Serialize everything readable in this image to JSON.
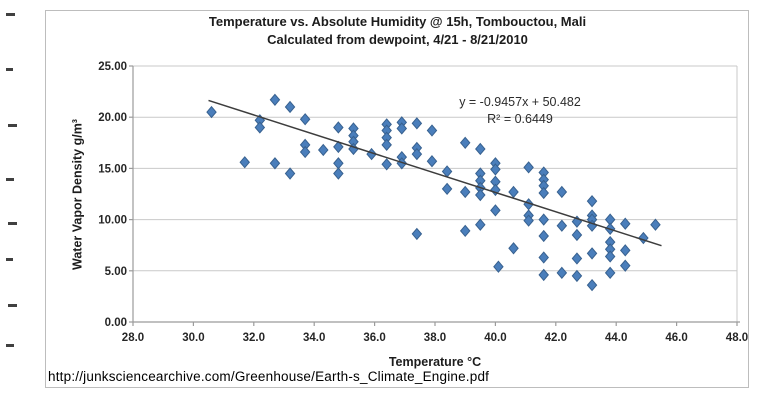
{
  "colors": {
    "marker_fill": "#4a7ebb",
    "marker_edge": "#38618f",
    "gridline": "#c9c9c9",
    "axis": "#9b9b9b",
    "trendline": "#3d3d3d",
    "frame_border": "#bdbdbd",
    "tick_text": "#262626"
  },
  "footer": {
    "url": "http://junksciencearchive.com/Greenhouse/Earth-s_Climate_Engine.pdf"
  },
  "chart_data": {
    "type": "scatter",
    "title_line1": "Temperature vs. Absolute Humidity @ 15h, Tombouctou, Mali",
    "title_line2": "Calculated from dewpoint, 4/21 - 8/21/2010",
    "xlabel": "Temperature °C",
    "ylabel": "Water Vapor Density g/m³",
    "xlim": [
      28,
      48
    ],
    "ylim": [
      0,
      25
    ],
    "xticks": [
      "28.0",
      "30.0",
      "32.0",
      "34.0",
      "36.0",
      "38.0",
      "40.0",
      "42.0",
      "44.0",
      "46.0",
      "48.0"
    ],
    "yticks": [
      "0.00",
      "5.00",
      "10.00",
      "15.00",
      "20.00",
      "25.00"
    ],
    "grid": "horizontal-only",
    "legend": "none",
    "marker_shape": "diamond",
    "trendline": {
      "equation_label": "y = -0.9457x + 50.482",
      "r2_label": "R² = 0.6449",
      "slope": -0.9457,
      "intercept": 50.482,
      "r_squared": 0.6449,
      "x_start": 30.5,
      "x_end": 45.5
    },
    "points": [
      [
        30.6,
        20.5
      ],
      [
        31.7,
        15.6
      ],
      [
        32.2,
        19.7
      ],
      [
        32.2,
        19.0
      ],
      [
        32.7,
        21.7
      ],
      [
        32.7,
        15.5
      ],
      [
        33.2,
        21.0
      ],
      [
        33.2,
        14.5
      ],
      [
        33.7,
        19.8
      ],
      [
        33.7,
        17.3
      ],
      [
        33.7,
        16.6
      ],
      [
        34.3,
        16.8
      ],
      [
        34.8,
        19.0
      ],
      [
        34.8,
        17.1
      ],
      [
        34.8,
        15.5
      ],
      [
        34.8,
        14.5
      ],
      [
        35.3,
        18.9
      ],
      [
        35.3,
        18.2
      ],
      [
        35.3,
        17.6
      ],
      [
        35.3,
        16.9
      ],
      [
        35.9,
        16.4
      ],
      [
        36.4,
        19.3
      ],
      [
        36.4,
        18.7
      ],
      [
        36.4,
        18.0
      ],
      [
        36.4,
        17.3
      ],
      [
        36.4,
        15.4
      ],
      [
        36.9,
        19.5
      ],
      [
        36.9,
        18.9
      ],
      [
        36.9,
        16.1
      ],
      [
        36.9,
        15.5
      ],
      [
        37.4,
        19.4
      ],
      [
        37.4,
        17.0
      ],
      [
        37.4,
        16.4
      ],
      [
        37.4,
        8.6
      ],
      [
        37.9,
        18.7
      ],
      [
        37.9,
        15.7
      ],
      [
        38.4,
        14.7
      ],
      [
        38.4,
        13.0
      ],
      [
        39.0,
        17.5
      ],
      [
        39.0,
        12.7
      ],
      [
        39.0,
        8.9
      ],
      [
        39.5,
        16.9
      ],
      [
        39.5,
        14.5
      ],
      [
        39.5,
        13.8
      ],
      [
        39.5,
        13.1
      ],
      [
        39.5,
        12.4
      ],
      [
        39.5,
        9.5
      ],
      [
        40.0,
        15.5
      ],
      [
        40.0,
        14.9
      ],
      [
        40.0,
        13.7
      ],
      [
        40.0,
        12.9
      ],
      [
        40.0,
        10.9
      ],
      [
        40.1,
        5.4
      ],
      [
        40.6,
        12.7
      ],
      [
        40.6,
        7.2
      ],
      [
        41.1,
        15.1
      ],
      [
        41.1,
        11.5
      ],
      [
        41.1,
        10.4
      ],
      [
        41.1,
        9.9
      ],
      [
        41.6,
        14.6
      ],
      [
        41.6,
        13.9
      ],
      [
        41.6,
        13.3
      ],
      [
        41.6,
        12.6
      ],
      [
        41.6,
        10.0
      ],
      [
        41.6,
        8.4
      ],
      [
        41.6,
        6.3
      ],
      [
        41.6,
        4.6
      ],
      [
        42.2,
        12.7
      ],
      [
        42.2,
        9.4
      ],
      [
        42.2,
        4.8
      ],
      [
        42.7,
        9.8
      ],
      [
        42.7,
        8.5
      ],
      [
        42.7,
        6.2
      ],
      [
        42.7,
        4.5
      ],
      [
        43.2,
        11.8
      ],
      [
        43.2,
        10.4
      ],
      [
        43.2,
        10.0
      ],
      [
        43.2,
        9.4
      ],
      [
        43.2,
        6.7
      ],
      [
        43.2,
        3.6
      ],
      [
        43.8,
        10.0
      ],
      [
        43.8,
        9.1
      ],
      [
        43.8,
        7.8
      ],
      [
        43.8,
        7.1
      ],
      [
        43.8,
        6.4
      ],
      [
        43.8,
        4.8
      ],
      [
        44.3,
        9.6
      ],
      [
        44.3,
        7.0
      ],
      [
        44.3,
        5.5
      ],
      [
        44.9,
        8.2
      ],
      [
        45.3,
        9.5
      ]
    ]
  }
}
